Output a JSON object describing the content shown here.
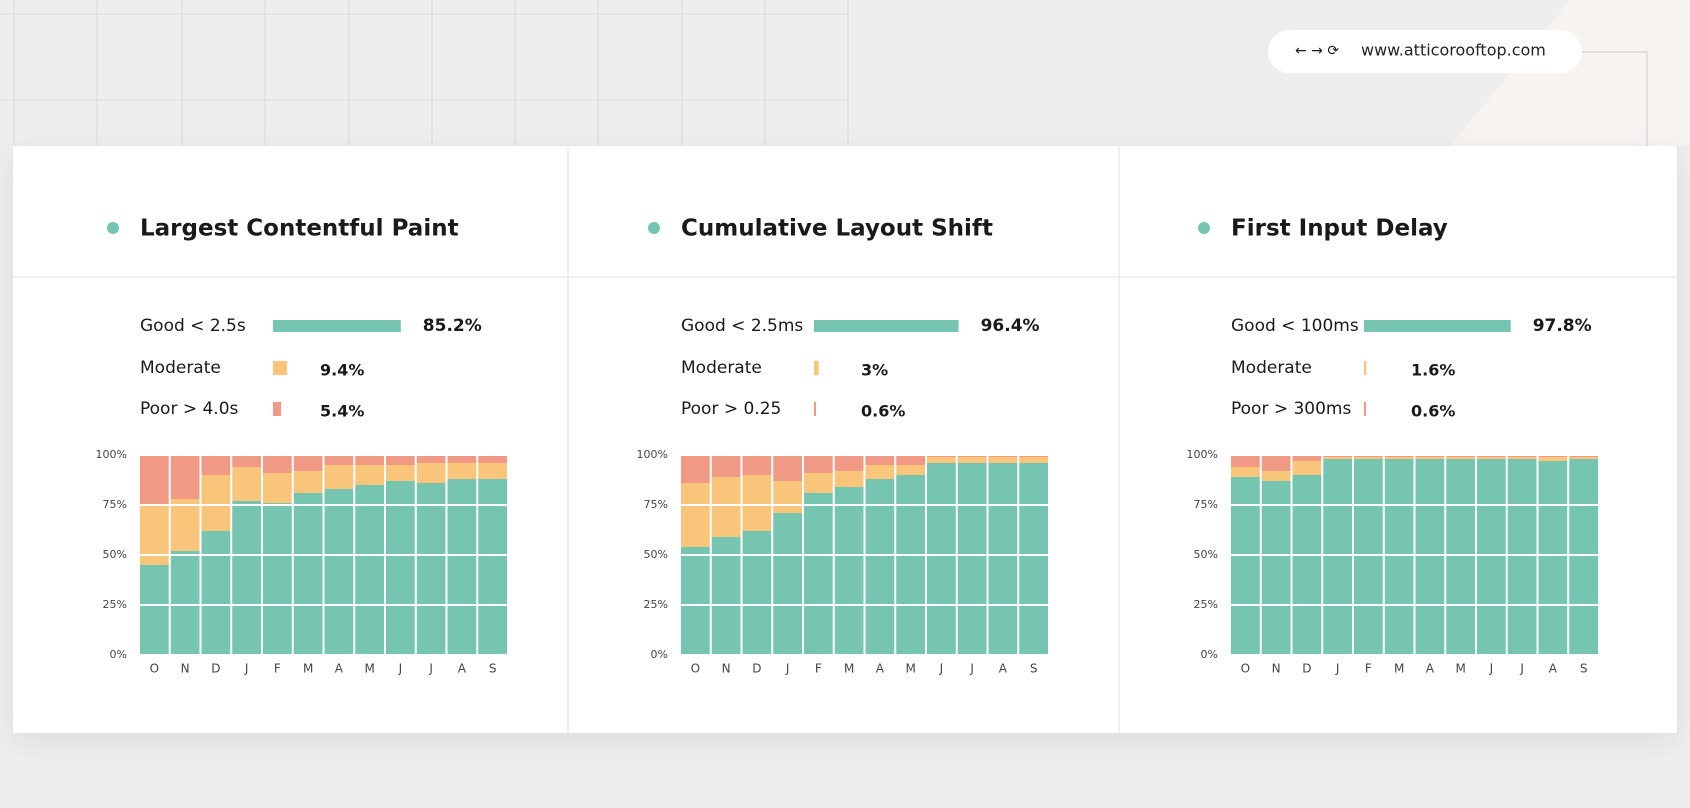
{
  "url": "www.atticorooftop.com",
  "chart_data": [
    {
      "type": "stacked-bar",
      "title": "Largest Contentful Paint",
      "summary": {
        "labels": [
          "Good < 2.5s",
          "Moderate",
          "Poor > 4.0s"
        ],
        "values": [
          85.2,
          9.4,
          5.4
        ],
        "value_labels": [
          "85.2%",
          "9.4%",
          "5.4%"
        ]
      },
      "categories": [
        "O",
        "N",
        "D",
        "J",
        "F",
        "M",
        "A",
        "M",
        "J",
        "J",
        "A",
        "S"
      ],
      "series": [
        {
          "color": "#76c5b0",
          "values": [
            45,
            52,
            62,
            77,
            76,
            81,
            83,
            85,
            87,
            86,
            88,
            88
          ]
        },
        {
          "color": "#f8c57a",
          "values": [
            30,
            26,
            28,
            17,
            15,
            11,
            12,
            10,
            8,
            10,
            8,
            8
          ]
        },
        {
          "color": "#f09a86",
          "values": [
            25,
            22,
            10,
            6,
            9,
            8,
            5,
            5,
            5,
            4,
            4,
            4
          ]
        }
      ],
      "ylim": [
        0,
        100
      ],
      "yticks": [
        {
          "value": 0,
          "label": "0%"
        },
        {
          "value": 25,
          "label": "25%"
        },
        {
          "value": 50,
          "label": "50%"
        },
        {
          "value": 75,
          "label": "75%"
        },
        {
          "value": 100,
          "label": "100%"
        }
      ]
    },
    {
      "type": "stacked-bar",
      "title": "Cumulative Layout Shift",
      "summary": {
        "labels": [
          "Good < 2.5ms",
          "Moderate",
          "Poor > 0.25"
        ],
        "values": [
          96.4,
          3,
          0.6
        ],
        "value_labels": [
          "96.4%",
          "3%",
          "0.6%"
        ]
      },
      "categories": [
        "O",
        "N",
        "D",
        "J",
        "F",
        "M",
        "A",
        "M",
        "J",
        "J",
        "A",
        "S"
      ],
      "series": [
        {
          "color": "#76c5b0",
          "values": [
            54,
            59,
            62,
            71,
            81,
            84,
            88,
            90,
            96,
            96,
            96,
            96
          ]
        },
        {
          "color": "#f8c57a",
          "values": [
            32,
            30,
            28,
            16,
            10,
            8,
            7,
            5,
            3,
            3,
            3,
            3
          ]
        },
        {
          "color": "#f09a86",
          "values": [
            14,
            11,
            10,
            13,
            9,
            8,
            5,
            5,
            1,
            1,
            1,
            1
          ]
        }
      ],
      "ylim": [
        0,
        100
      ],
      "yticks": [
        {
          "value": 0,
          "label": "0%"
        },
        {
          "value": 25,
          "label": "25%"
        },
        {
          "value": 50,
          "label": "50%"
        },
        {
          "value": 75,
          "label": "75%"
        },
        {
          "value": 100,
          "label": "100%"
        }
      ]
    },
    {
      "type": "stacked-bar",
      "title": "First Input Delay",
      "summary": {
        "labels": [
          "Good < 100ms",
          "Moderate",
          "Poor > 300ms"
        ],
        "values": [
          97.8,
          1.6,
          0.6
        ],
        "value_labels": [
          "97.8%",
          "1.6%",
          "0.6%"
        ]
      },
      "categories": [
        "O",
        "N",
        "D",
        "J",
        "F",
        "M",
        "A",
        "M",
        "J",
        "J",
        "A",
        "S"
      ],
      "series": [
        {
          "color": "#76c5b0",
          "values": [
            89,
            87,
            90,
            98,
            98,
            98,
            98,
            98,
            98,
            98,
            97,
            98
          ]
        },
        {
          "color": "#f8c57a",
          "values": [
            5,
            5,
            7,
            1,
            1,
            1,
            1,
            1,
            1,
            1,
            2,
            1
          ]
        },
        {
          "color": "#f09a86",
          "values": [
            6,
            8,
            3,
            1,
            1,
            1,
            1,
            1,
            1,
            1,
            1,
            1
          ]
        }
      ],
      "ylim": [
        0,
        100
      ],
      "yticks": [
        {
          "value": 0,
          "label": "0%"
        },
        {
          "value": 25,
          "label": "25%"
        },
        {
          "value": 50,
          "label": "50%"
        },
        {
          "value": 75,
          "label": "75%"
        },
        {
          "value": 100,
          "label": "100%"
        }
      ]
    }
  ]
}
